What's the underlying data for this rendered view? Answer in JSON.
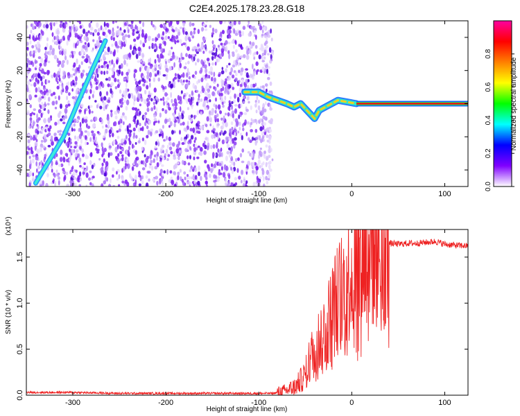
{
  "chart_data": [
    {
      "type": "heatmap",
      "title": "C2E4.2025.178.23.28.G18",
      "xlabel": "Height of straight line (km)",
      "ylabel": "Frequency (Hz)",
      "xlim": [
        -350,
        125
      ],
      "ylim": [
        -50,
        50
      ],
      "x_ticks": [
        -300,
        -200,
        -100,
        0,
        100
      ],
      "y_ticks": [
        -40,
        -20,
        0,
        20,
        40
      ],
      "colorbar": {
        "label": "Normalized spectral amplitude",
        "range": [
          0,
          1
        ],
        "ticks": [
          0.0,
          0.2,
          0.4,
          0.6,
          0.8
        ],
        "colors": [
          "#ffffff",
          "#8000ff",
          "#0000ff",
          "#00ffff",
          "#00ff00",
          "#ffff00",
          "#ff8000",
          "#ff0000",
          "#ff00a0"
        ]
      },
      "noise_region_x": [
        -350,
        -85
      ],
      "features": {
        "diagonal_trace": [
          [
            -340,
            -48
          ],
          [
            -310,
            -20
          ],
          [
            -295,
            0
          ],
          [
            -278,
            22
          ],
          [
            -265,
            38
          ]
        ],
        "main_trace": [
          [
            -115,
            7
          ],
          [
            -100,
            7
          ],
          [
            -90,
            4
          ],
          [
            -80,
            2
          ],
          [
            -70,
            0
          ],
          [
            -62,
            -2
          ],
          [
            -55,
            0
          ],
          [
            -50,
            -3
          ],
          [
            -45,
            -6
          ],
          [
            -40,
            -9
          ],
          [
            -35,
            -4
          ],
          [
            -25,
            -1
          ],
          [
            -15,
            2
          ],
          [
            -5,
            1
          ],
          [
            5,
            0
          ],
          [
            125,
            0
          ]
        ]
      }
    },
    {
      "type": "line",
      "xlabel": "Height of straight line (km)",
      "ylabel": "SNR (10 * v/v)",
      "y_multiplier": "(x10⁴)",
      "xlim": [
        -350,
        125
      ],
      "ylim": [
        0,
        1.8
      ],
      "x_ticks": [
        -300,
        -200,
        -100,
        0,
        100
      ],
      "y_ticks": [
        0.0,
        0.5,
        1.0,
        1.5
      ],
      "series": [
        {
          "color": "#ee2222",
          "x": [
            -350,
            -300,
            -250,
            -200,
            -150,
            -100,
            -85,
            -70,
            -60,
            -50,
            -45,
            -40,
            -35,
            -30,
            -25,
            -20,
            -15,
            -10,
            -5,
            0,
            5,
            10,
            20,
            30,
            40,
            50,
            60,
            70,
            80,
            90,
            100,
            110,
            125
          ],
          "y": [
            0.03,
            0.03,
            0.02,
            0.02,
            0.02,
            0.02,
            0.02,
            0.05,
            0.1,
            0.22,
            0.4,
            0.5,
            0.6,
            0.7,
            0.8,
            0.95,
            1.05,
            1.15,
            1.25,
            1.35,
            1.42,
            1.5,
            1.6,
            1.63,
            1.65,
            1.64,
            1.65,
            1.65,
            1.66,
            1.67,
            1.64,
            1.63,
            1.62
          ]
        }
      ]
    }
  ]
}
